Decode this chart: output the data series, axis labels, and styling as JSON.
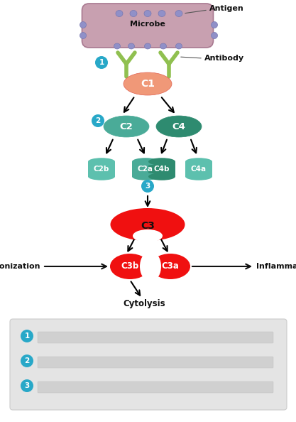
{
  "background_color": "#ffffff",
  "teal_color": "#4aab98",
  "teal_dark": "#2e8b70",
  "teal_cyl": "#5dc0ae",
  "red_color": "#f01010",
  "salmon_color": "#f09878",
  "microbe_color": "#c8a0b0",
  "microbe_edge": "#a87890",
  "antigen_bump": "#9090c8",
  "antibody_color": "#90c050",
  "circle_color": "#28a8c8",
  "white_text": "#ffffff",
  "black_text": "#111111",
  "labels": {
    "microbe": "Microbe",
    "antigen": "Antigen",
    "antibody": "Antibody",
    "c1": "C1",
    "c2": "C2",
    "c4": "C4",
    "c2b": "C2b",
    "c2a": "C2a",
    "c4b": "C4b",
    "c4a": "C4a",
    "c3": "C3",
    "c3b": "C3b",
    "c3a": "C3a",
    "opsonization": "Opsonization",
    "inflammation": "Inflammation",
    "cytolysis": "Cytolysis"
  }
}
